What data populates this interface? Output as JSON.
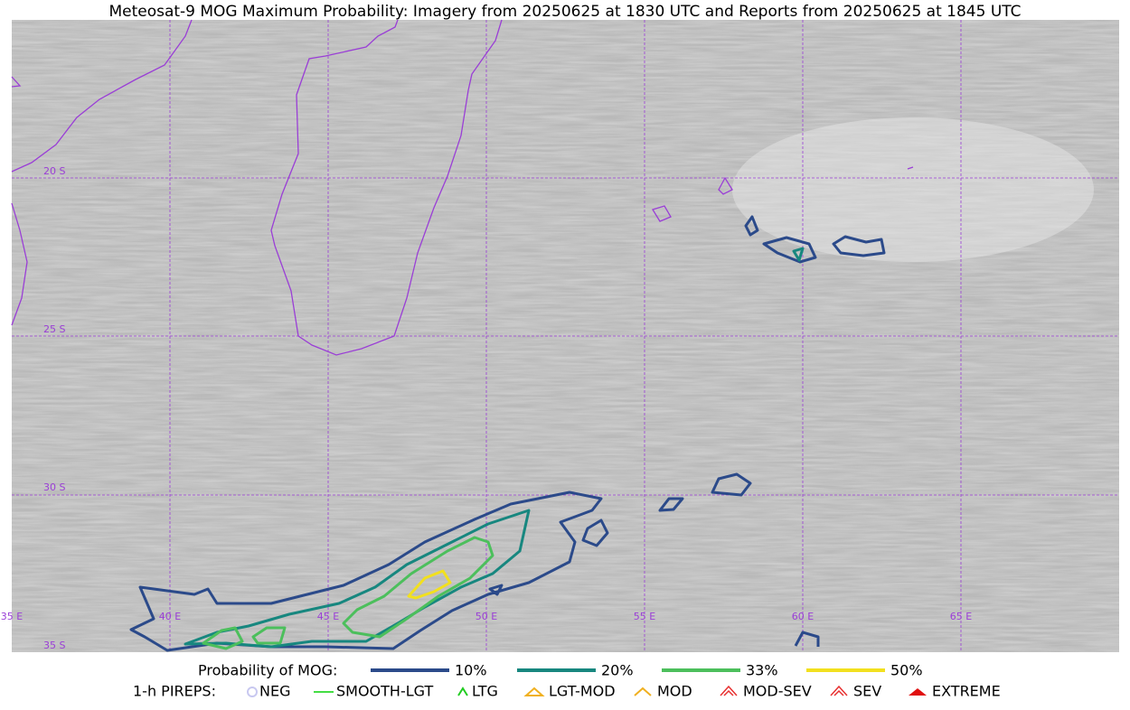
{
  "header": {
    "title": "Meteosat-9 MOG Maximum Probability: Imagery from 20250625 at 1830 UTC and Reports from 20250625 at 1845 UTC"
  },
  "map": {
    "lat_labels": [
      "20 S",
      "25 S",
      "30 S",
      "35 S"
    ],
    "lon_labels": [
      "35 E",
      "40 E",
      "45 E",
      "50 E",
      "55 E",
      "60 E",
      "65 E"
    ]
  },
  "legend": {
    "probability": {
      "label": "Probability of MOG:",
      "levels": [
        {
          "label": "10%",
          "color": "#2b4a8a"
        },
        {
          "label": "20%",
          "color": "#17877f"
        },
        {
          "label": "33%",
          "color": "#4cbf5c"
        },
        {
          "label": "50%",
          "color": "#f2e01e"
        }
      ]
    },
    "pireps": {
      "label": "1-h PIREPS:",
      "items": [
        {
          "label": "NEG",
          "color": "#c8c8f0"
        },
        {
          "label": "SMOOTH-LGT",
          "color": "#44dd44"
        },
        {
          "label": "LTG",
          "color": "#22cc22"
        },
        {
          "label": "LGT-MOD",
          "color": "#f0b020"
        },
        {
          "label": "MOD",
          "color": "#f0b020"
        },
        {
          "label": "MOD-SEV",
          "color": "#e83030"
        },
        {
          "label": "SEV",
          "color": "#e83030"
        },
        {
          "label": "EXTREME",
          "color": "#e01010"
        }
      ]
    }
  }
}
